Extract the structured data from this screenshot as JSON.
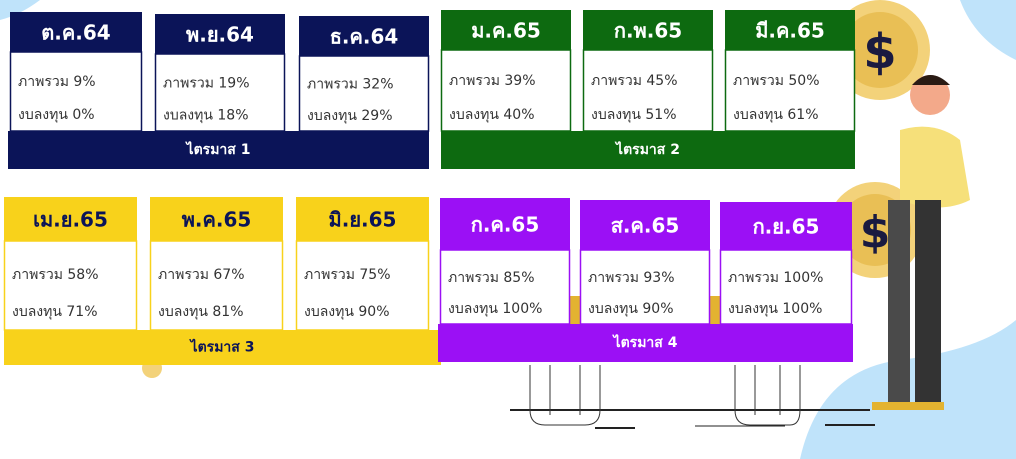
{
  "quarters": [
    {
      "label": "ไตรมาส 1",
      "months": [
        {
          "name": "ต.ค.64",
          "overall": "ภาพรวม 9%",
          "budget": "งบลงทุน 0%"
        },
        {
          "name": "พ.ย.64",
          "overall": "ภาพรวม 19%",
          "budget": "งบลงทุน 18%"
        },
        {
          "name": "ธ.ค.64",
          "overall": "ภาพรวม 32%",
          "budget": "งบลงทุน 29%"
        }
      ]
    },
    {
      "label": "ไตรมาส 2",
      "months": [
        {
          "name": "ม.ค.65",
          "overall": "ภาพรวม 39%",
          "budget": "งบลงทุน 40%"
        },
        {
          "name": "ก.พ.65",
          "overall": "ภาพรวม 45%",
          "budget": "งบลงทุน 51%"
        },
        {
          "name": "มี.ค.65",
          "overall": "ภาพรวม 50%",
          "budget": "งบลงทุน 61%"
        }
      ]
    },
    {
      "label": "ไตรมาส 3",
      "months": [
        {
          "name": "เม.ย.65",
          "overall": "ภาพรวม 58%",
          "budget": "งบลงทุน 71%"
        },
        {
          "name": "พ.ค.65",
          "overall": "ภาพรวม 67%",
          "budget": "งบลงทุน 81%"
        },
        {
          "name": "มิ.ย.65",
          "overall": "ภาพรวม 75%",
          "budget": "งบลงทุน 90%"
        }
      ]
    },
    {
      "label": "ไตรมาส 4",
      "months": [
        {
          "name": "ก.ค.65",
          "overall": "ภาพรวม 85%",
          "budget": "งบลงทุน 100%"
        },
        {
          "name": "ส.ค.65",
          "overall": "ภาพรวม 93%",
          "budget": "งบลงทุน 90%"
        },
        {
          "name": "ก.ย.65",
          "overall": "ภาพรวม 100%",
          "budget": "งบลงทุน 100%"
        }
      ]
    }
  ]
}
